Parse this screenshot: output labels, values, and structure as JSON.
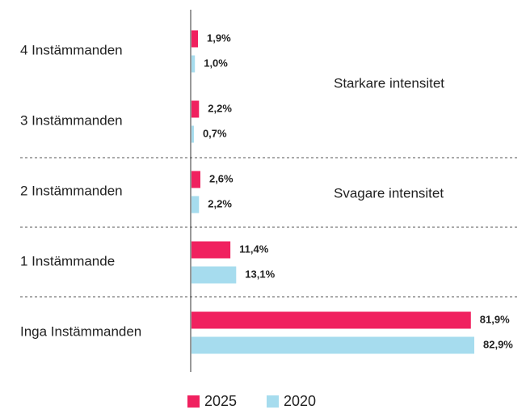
{
  "chart_data": {
    "type": "bar",
    "orientation": "horizontal",
    "categories": [
      "4 Instämmanden",
      "3 Instämmanden",
      "2 Instämmanden",
      "1 Instämmande",
      "Inga Instämmanden"
    ],
    "series": [
      {
        "name": "2025",
        "color": "#f0215f",
        "values": [
          1.9,
          2.2,
          2.6,
          11.4,
          81.9
        ],
        "value_labels": [
          "1,9%",
          "2,2%",
          "2,6%",
          "11,4%",
          "81,9%"
        ]
      },
      {
        "name": "2020",
        "color": "#a6dcee",
        "values": [
          1.0,
          0.7,
          2.2,
          13.1,
          82.9
        ],
        "value_labels": [
          "1,0%",
          "0,7%",
          "2,2%",
          "13,1%",
          "82,9%"
        ]
      }
    ],
    "annotations": [
      "Starkare intensitet",
      "Svagare intensitet"
    ]
  }
}
